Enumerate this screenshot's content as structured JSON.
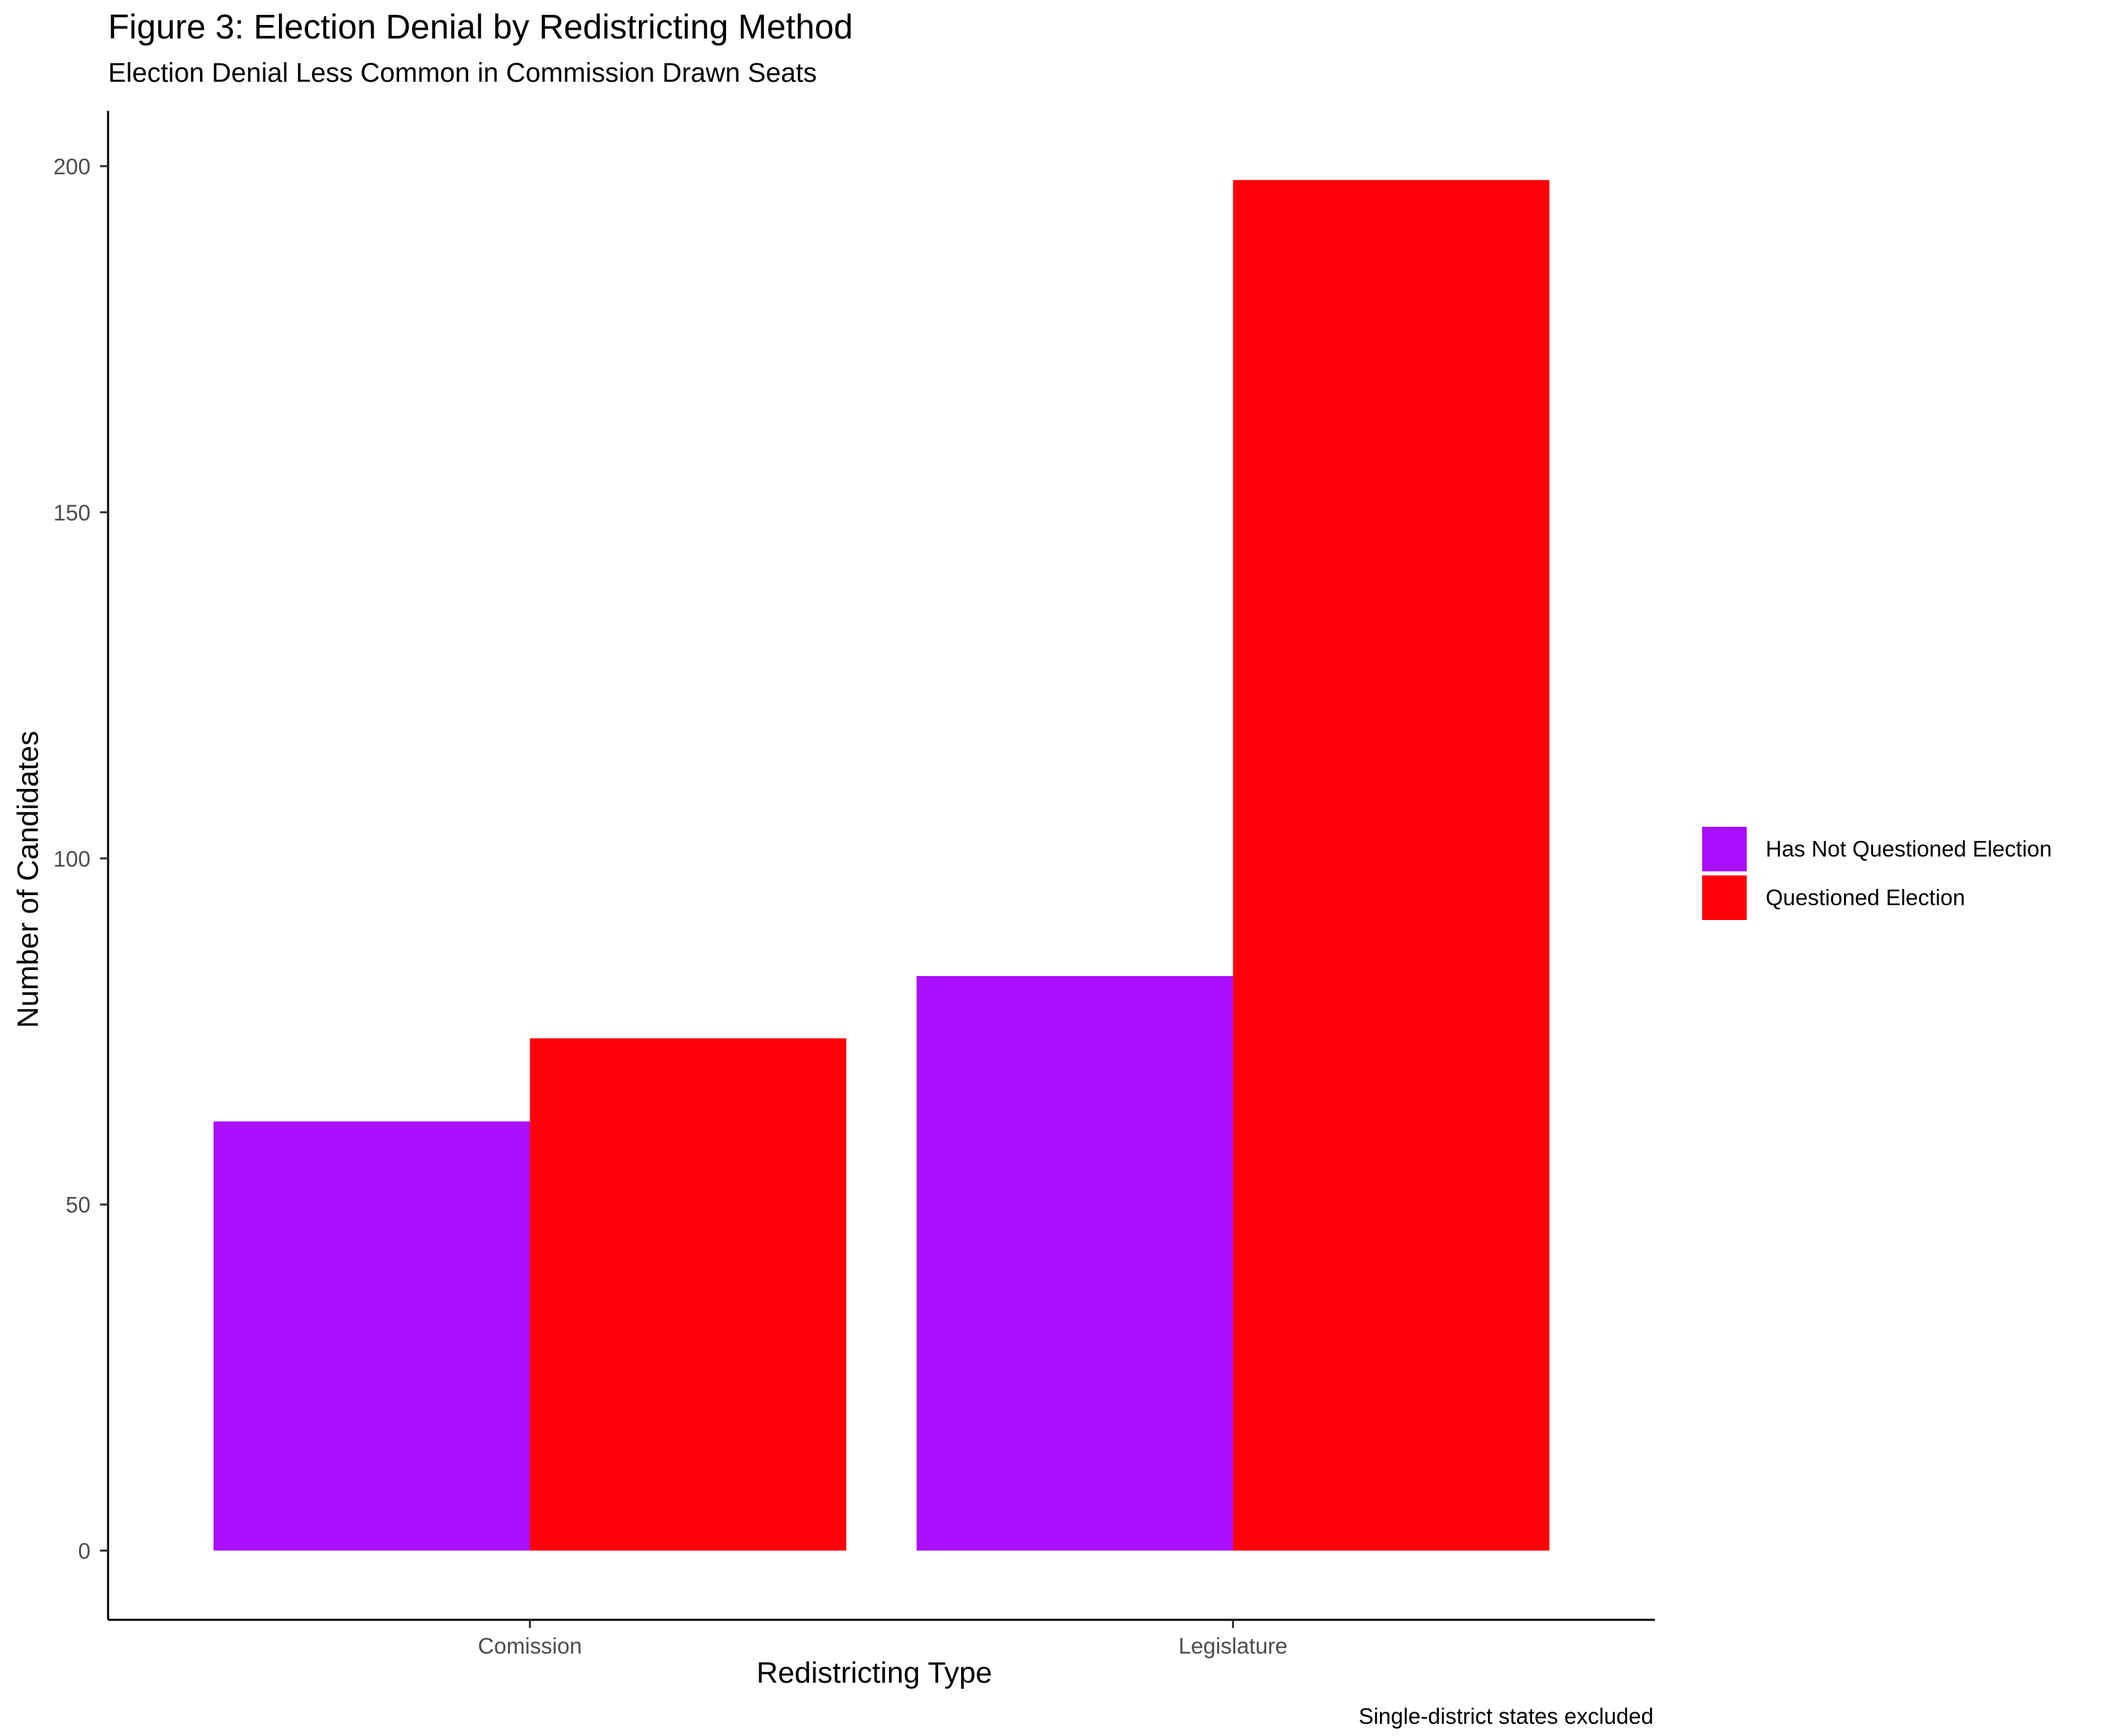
{
  "chart_data": {
    "type": "bar",
    "title": "Figure 3: Election Denial by Redistricting Method",
    "subtitle": "Election Denial Less Common in Commission Drawn Seats",
    "caption": "Single-district states excluded",
    "xlabel": "Redistricting Type",
    "ylabel": "Number of Candidates",
    "categories": [
      "Comission",
      "Legislature"
    ],
    "series": [
      {
        "name": "Has Not Questioned Election",
        "color": "#AA0FFF",
        "values": [
          62,
          83
        ]
      },
      {
        "name": "Questioned Election",
        "color": "#FF0008",
        "values": [
          74,
          198
        ]
      }
    ],
    "ylim": [
      -10,
      208
    ],
    "yticks": [
      0,
      50,
      100,
      150,
      200
    ],
    "grid": false,
    "legend_position": "right"
  }
}
